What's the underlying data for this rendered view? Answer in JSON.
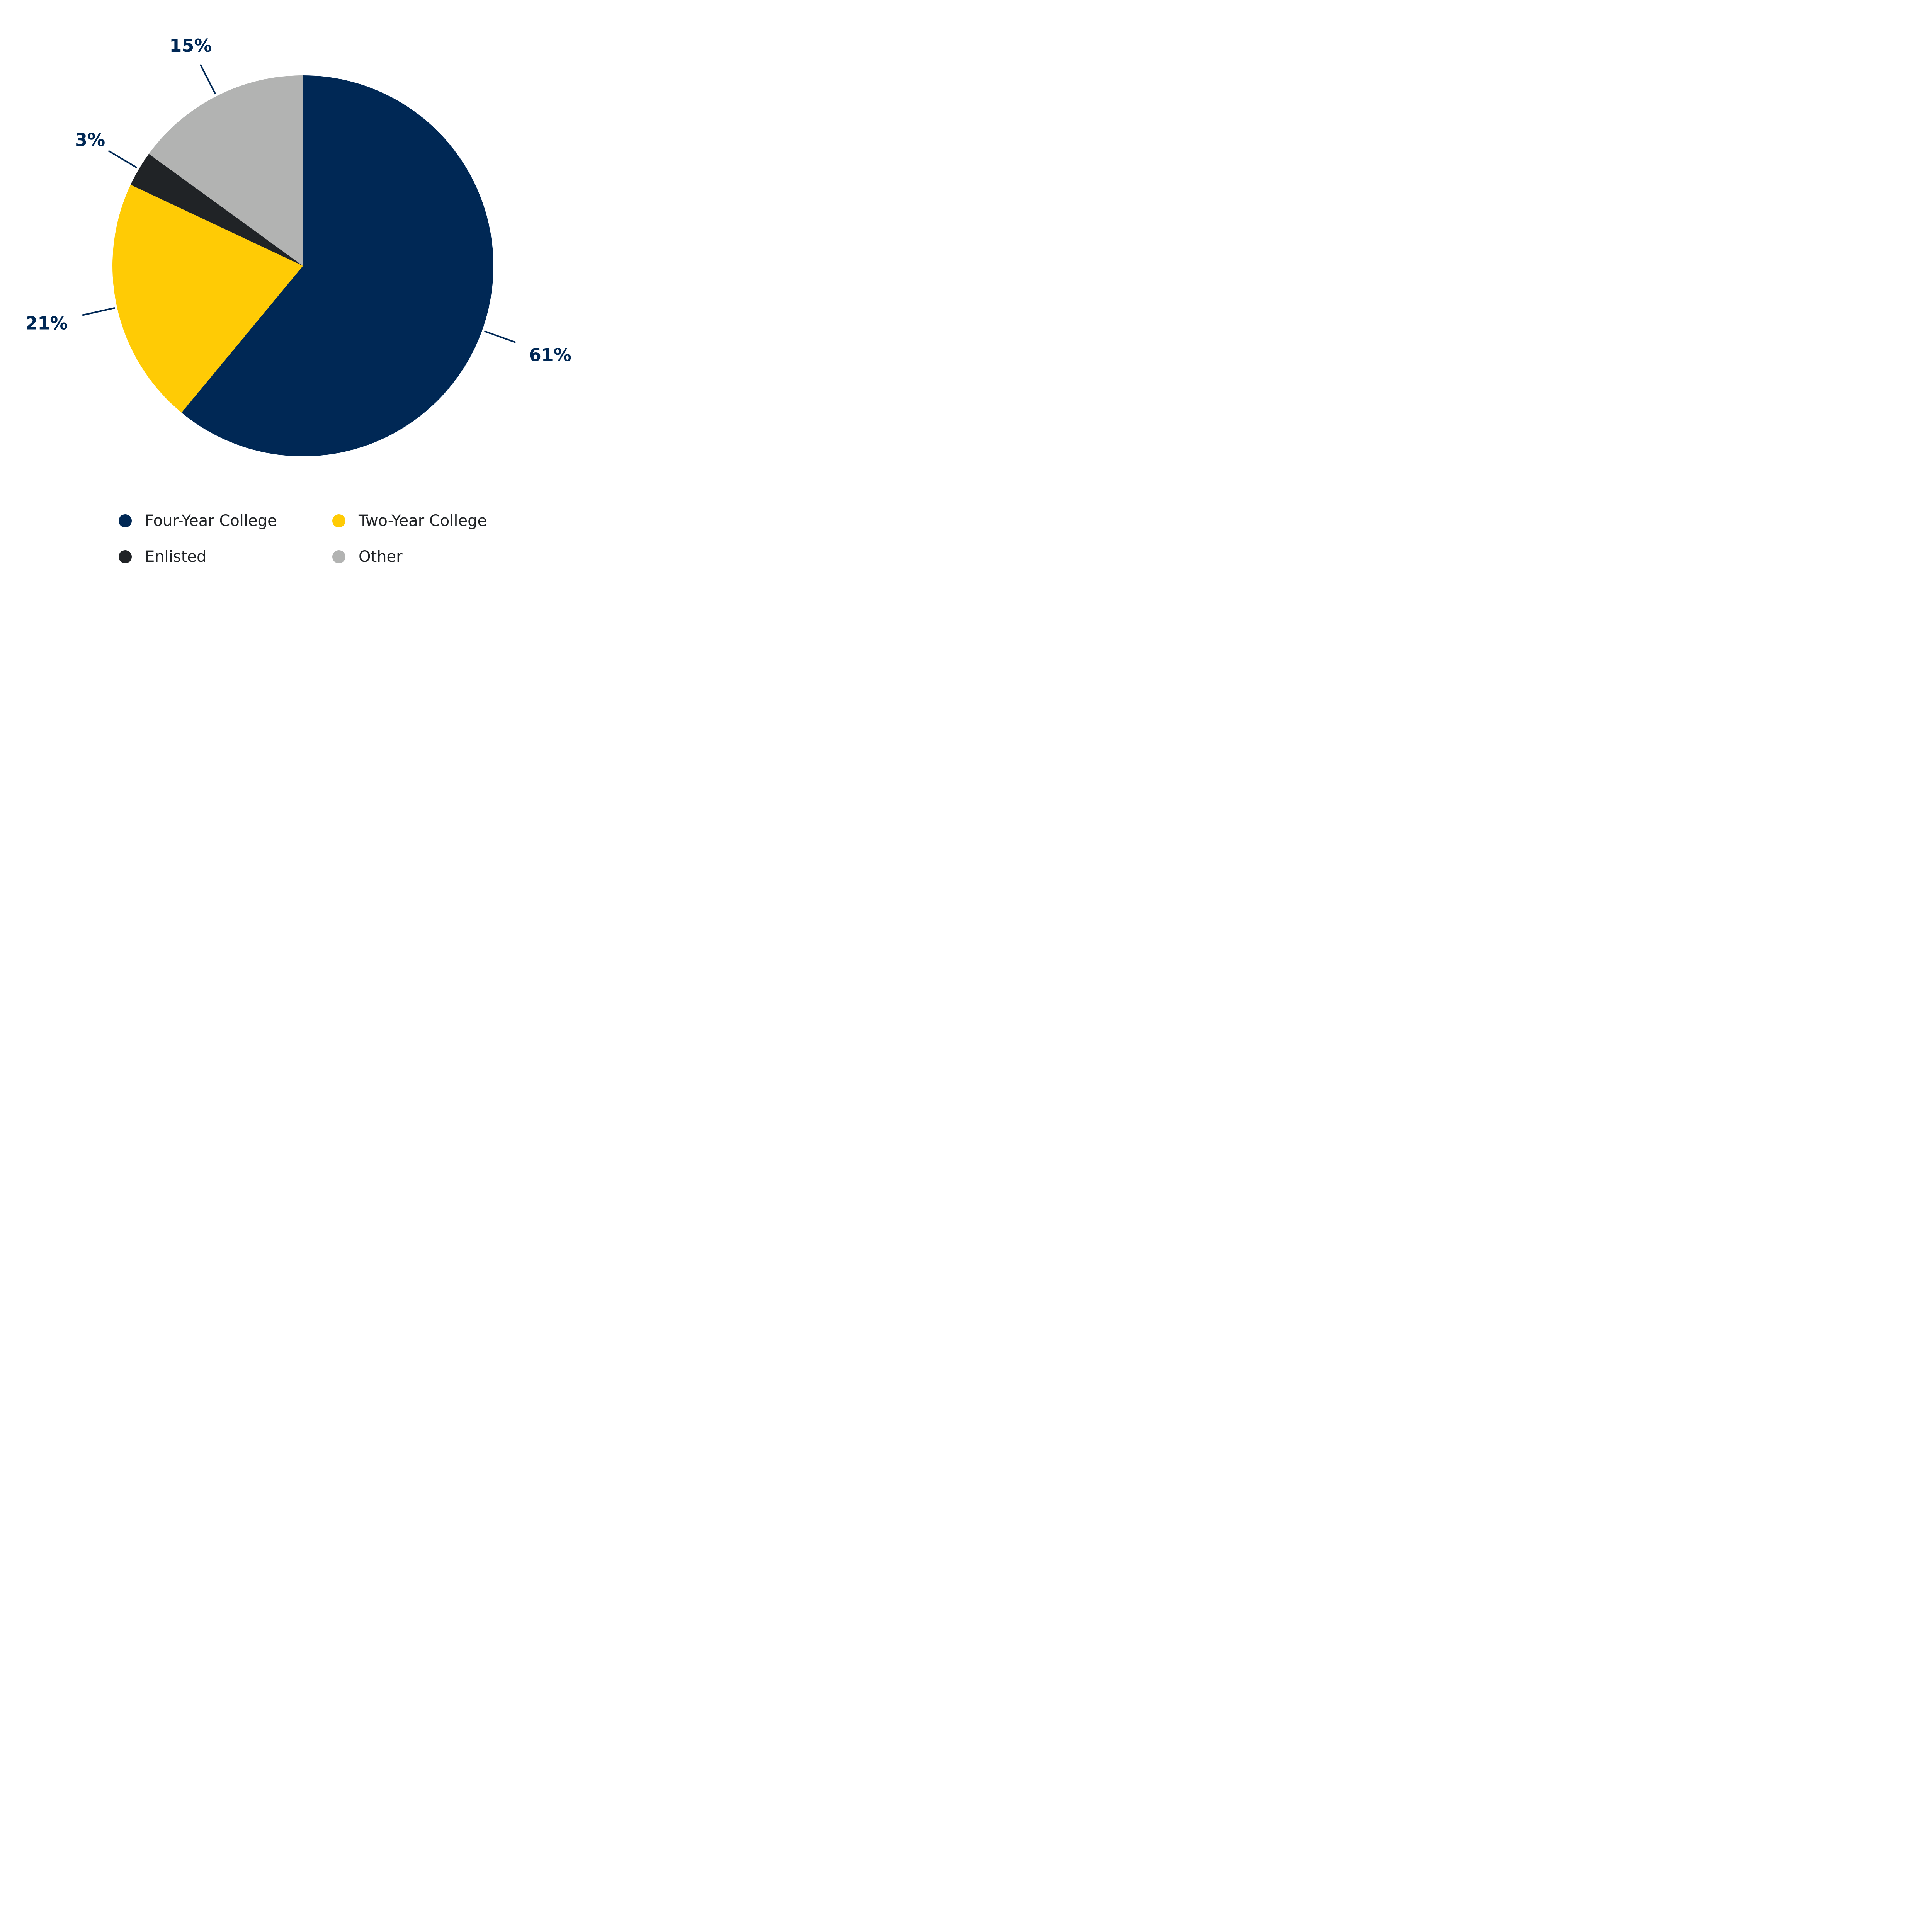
{
  "chart_data": {
    "type": "pie",
    "categories": [
      "Four-Year College",
      "Two-Year College",
      "Enlisted",
      "Other"
    ],
    "values": [
      61,
      21,
      3,
      15
    ],
    "data_labels": [
      "61%",
      "21%",
      "3%",
      "15%"
    ],
    "colors": [
      "#002855",
      "#FFCB05",
      "#202326",
      "#B2B3B2"
    ],
    "label_color": "#002855",
    "legend_text_color": "#202326",
    "start": "12 o'clock",
    "direction": "clockwise",
    "legend_placement": "bottom"
  }
}
